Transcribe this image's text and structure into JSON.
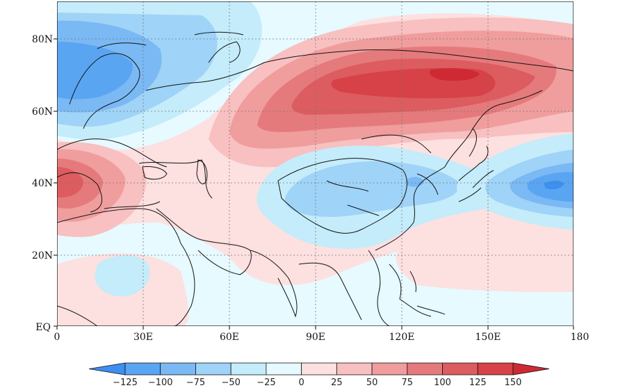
{
  "chart_data": {
    "type": "heatmap",
    "title": "",
    "xlabel": "",
    "ylabel": "",
    "x_ticks": [
      "0",
      "30E",
      "60E",
      "90E",
      "120E",
      "150E",
      "180"
    ],
    "y_ticks": [
      "EQ",
      "20N",
      "40N",
      "60N",
      "80N"
    ],
    "xlim": [
      0,
      180
    ],
    "ylim": [
      0,
      90
    ],
    "grid": true,
    "colorbar": {
      "levels": [
        -125,
        -100,
        -75,
        -50,
        -25,
        0,
        25,
        50,
        75,
        100,
        125,
        150
      ],
      "labels": [
        "-125",
        "-100",
        "-75",
        "-50",
        "-25",
        "0",
        "25",
        "50",
        "75",
        "100",
        "125",
        "150"
      ],
      "colors": [
        "#3d8ff0",
        "#5aa5f2",
        "#7ab9f4",
        "#9fd3f7",
        "#c4ecfa",
        "#e6faff",
        "#fde0e0",
        "#f8c0c0",
        "#f09d9d",
        "#e57a7c",
        "#dc5c5f",
        "#d64247",
        "#cf2a33"
      ]
    },
    "anomaly_centers": [
      {
        "lon": 10,
        "lat": 68,
        "level": -100
      },
      {
        "lon": 55,
        "lat": 76,
        "level": -50
      },
      {
        "lon": 135,
        "lat": 70,
        "level": 125
      },
      {
        "lon": 95,
        "lat": 66,
        "level": 100
      },
      {
        "lon": 3,
        "lat": 40,
        "level": 100
      },
      {
        "lon": 115,
        "lat": 35,
        "level": -50
      },
      {
        "lon": 125,
        "lat": 40,
        "level": -75
      },
      {
        "lon": 168,
        "lat": 39,
        "level": -100
      },
      {
        "lon": 25,
        "lat": 15,
        "level": -25
      }
    ]
  }
}
